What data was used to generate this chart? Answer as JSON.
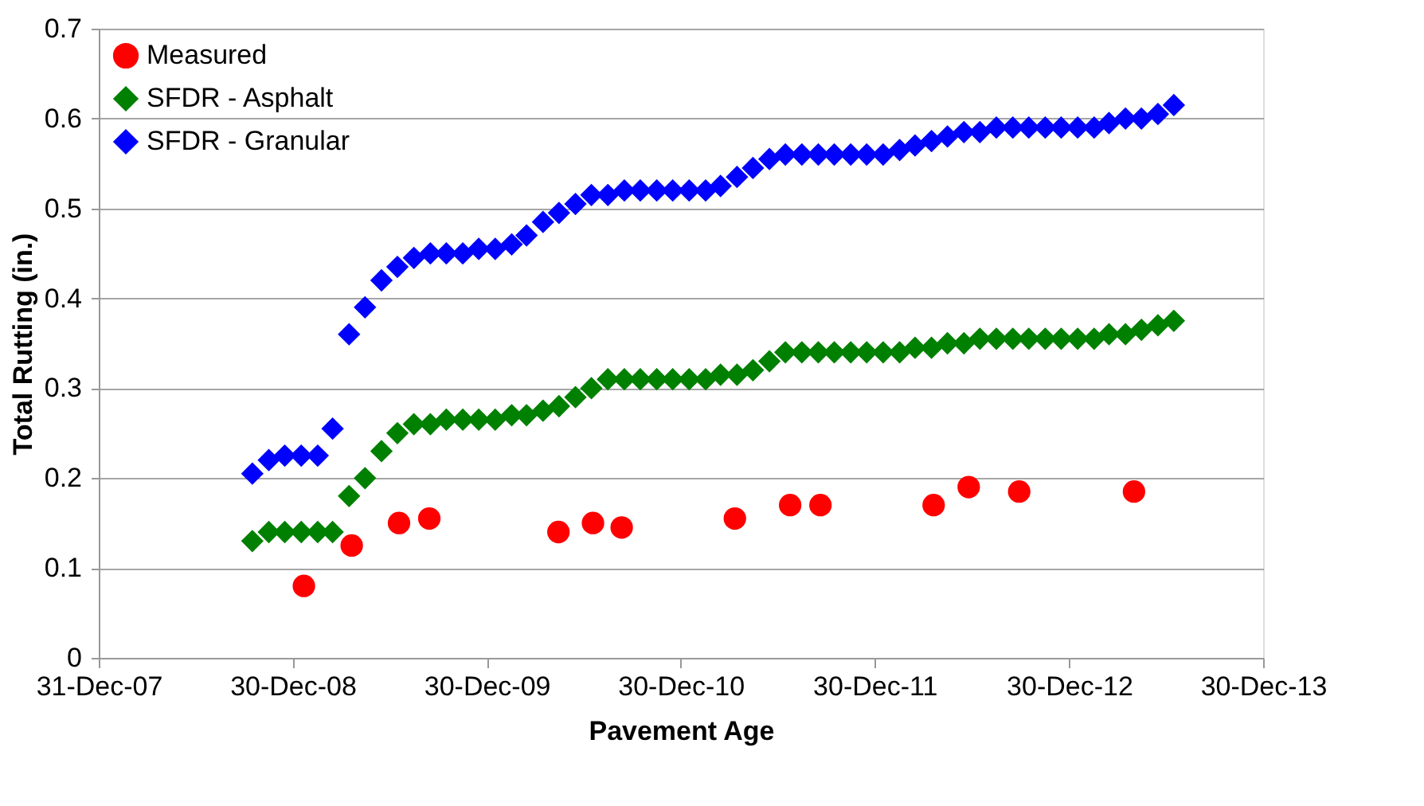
{
  "chart_data": {
    "type": "scatter",
    "xlabel": "Pavement Age",
    "ylabel": "Total Rutting (in.)",
    "xlim": [
      "2007-12-31",
      "2013-12-30"
    ],
    "xticks": [
      {
        "value": "2007-12-31",
        "label": "31-Dec-07"
      },
      {
        "value": "2008-12-30",
        "label": "30-Dec-08"
      },
      {
        "value": "2009-12-30",
        "label": "30-Dec-09"
      },
      {
        "value": "2010-12-30",
        "label": "30-Dec-10"
      },
      {
        "value": "2011-12-30",
        "label": "30-Dec-11"
      },
      {
        "value": "2012-12-30",
        "label": "30-Dec-12"
      },
      {
        "value": "2013-12-30",
        "label": "30-Dec-13"
      }
    ],
    "ylim": [
      0,
      0.7
    ],
    "yticks": [
      0,
      0.1,
      0.2,
      0.3,
      0.4,
      0.5,
      0.6,
      0.7
    ],
    "grid": "y",
    "legend": "top left",
    "series": [
      {
        "name": "Measured",
        "color": "#ff0000",
        "marker": "circle",
        "x": [
          "2009-01-20",
          "2009-04-20",
          "2009-07-18",
          "2009-09-13",
          "2010-05-14",
          "2010-07-18",
          "2010-09-10",
          "2011-04-11",
          "2011-07-24",
          "2011-09-19",
          "2012-04-19",
          "2012-06-24",
          "2012-09-27",
          "2013-05-01"
        ],
        "values": [
          0.08,
          0.125,
          0.15,
          0.155,
          0.14,
          0.15,
          0.145,
          0.155,
          0.17,
          0.17,
          0.17,
          0.19,
          0.185,
          0.185
        ]
      },
      {
        "name": "SFDR - Asphalt",
        "color": "#008000",
        "marker": "diamond",
        "x": [
          "2008-10-15",
          "2008-11-15",
          "2008-12-15",
          "2009-01-15",
          "2009-02-15",
          "2009-03-15",
          "2009-04-15",
          "2009-05-15",
          "2009-06-15",
          "2009-07-15",
          "2009-08-15",
          "2009-09-15",
          "2009-10-15",
          "2009-11-15",
          "2009-12-15",
          "2010-01-15",
          "2010-02-15",
          "2010-03-15",
          "2010-04-15",
          "2010-05-15",
          "2010-06-15",
          "2010-07-15",
          "2010-08-15",
          "2010-09-15",
          "2010-10-15",
          "2010-11-15",
          "2010-12-15",
          "2011-01-15",
          "2011-02-15",
          "2011-03-15",
          "2011-04-15",
          "2011-05-15",
          "2011-06-15",
          "2011-07-15",
          "2011-08-15",
          "2011-09-15",
          "2011-10-15",
          "2011-11-15",
          "2011-12-15",
          "2012-01-15",
          "2012-02-15",
          "2012-03-15",
          "2012-04-15",
          "2012-05-15",
          "2012-06-15",
          "2012-07-15",
          "2012-08-15",
          "2012-09-15",
          "2012-10-15",
          "2012-11-15",
          "2012-12-15",
          "2013-01-15",
          "2013-02-15",
          "2013-03-15",
          "2013-04-15",
          "2013-05-15",
          "2013-06-15",
          "2013-07-15"
        ],
        "values": [
          0.13,
          0.14,
          0.14,
          0.14,
          0.14,
          0.14,
          0.18,
          0.2,
          0.23,
          0.25,
          0.26,
          0.26,
          0.265,
          0.265,
          0.265,
          0.265,
          0.27,
          0.27,
          0.275,
          0.28,
          0.29,
          0.3,
          0.31,
          0.31,
          0.31,
          0.31,
          0.31,
          0.31,
          0.31,
          0.315,
          0.315,
          0.32,
          0.33,
          0.34,
          0.34,
          0.34,
          0.34,
          0.34,
          0.34,
          0.34,
          0.34,
          0.345,
          0.345,
          0.35,
          0.35,
          0.355,
          0.355,
          0.355,
          0.355,
          0.355,
          0.355,
          0.355,
          0.355,
          0.36,
          0.36,
          0.365,
          0.37,
          0.375
        ]
      },
      {
        "name": "SFDR - Granular",
        "color": "#0000ff",
        "marker": "diamond",
        "x": [
          "2008-10-15",
          "2008-11-15",
          "2008-12-15",
          "2009-01-15",
          "2009-02-15",
          "2009-03-15",
          "2009-04-15",
          "2009-05-15",
          "2009-06-15",
          "2009-07-15",
          "2009-08-15",
          "2009-09-15",
          "2009-10-15",
          "2009-11-15",
          "2009-12-15",
          "2010-01-15",
          "2010-02-15",
          "2010-03-15",
          "2010-04-15",
          "2010-05-15",
          "2010-06-15",
          "2010-07-15",
          "2010-08-15",
          "2010-09-15",
          "2010-10-15",
          "2010-11-15",
          "2010-12-15",
          "2011-01-15",
          "2011-02-15",
          "2011-03-15",
          "2011-04-15",
          "2011-05-15",
          "2011-06-15",
          "2011-07-15",
          "2011-08-15",
          "2011-09-15",
          "2011-10-15",
          "2011-11-15",
          "2011-12-15",
          "2012-01-15",
          "2012-02-15",
          "2012-03-15",
          "2012-04-15",
          "2012-05-15",
          "2012-06-15",
          "2012-07-15",
          "2012-08-15",
          "2012-09-15",
          "2012-10-15",
          "2012-11-15",
          "2012-12-15",
          "2013-01-15",
          "2013-02-15",
          "2013-03-15",
          "2013-04-15",
          "2013-05-15",
          "2013-06-15",
          "2013-07-15"
        ],
        "values": [
          0.205,
          0.22,
          0.225,
          0.225,
          0.225,
          0.255,
          0.36,
          0.39,
          0.42,
          0.435,
          0.445,
          0.45,
          0.45,
          0.45,
          0.455,
          0.455,
          0.46,
          0.47,
          0.485,
          0.495,
          0.505,
          0.515,
          0.515,
          0.52,
          0.52,
          0.52,
          0.52,
          0.52,
          0.52,
          0.525,
          0.535,
          0.545,
          0.555,
          0.56,
          0.56,
          0.56,
          0.56,
          0.56,
          0.56,
          0.56,
          0.565,
          0.57,
          0.575,
          0.58,
          0.585,
          0.585,
          0.59,
          0.59,
          0.59,
          0.59,
          0.59,
          0.59,
          0.59,
          0.595,
          0.6,
          0.6,
          0.605,
          0.615
        ]
      }
    ]
  }
}
